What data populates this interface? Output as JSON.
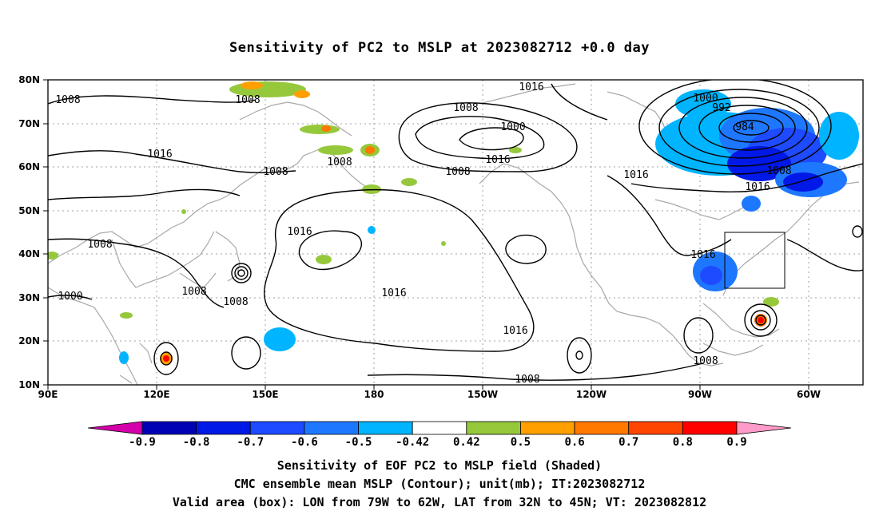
{
  "title": "Sensitivity of PC2 to MSLP at 2023082712 +0.0 day",
  "lat_labels": [
    "80N",
    "70N",
    "60N",
    "50N",
    "40N",
    "30N",
    "20N",
    "10N"
  ],
  "lon_labels": [
    "90E",
    "120E",
    "150E",
    "180",
    "150W",
    "120W",
    "90W",
    "60W"
  ],
  "contour_labels": [
    {
      "text": "1008"
    },
    {
      "text": "1008"
    },
    {
      "text": "1016"
    },
    {
      "text": "1008"
    },
    {
      "text": "1008"
    },
    {
      "text": "1016"
    },
    {
      "text": "1008"
    },
    {
      "text": "1000"
    },
    {
      "text": "1008"
    },
    {
      "text": "1008"
    },
    {
      "text": "1016"
    },
    {
      "text": "1008"
    },
    {
      "text": "1000"
    },
    {
      "text": "1016"
    },
    {
      "text": "1008"
    },
    {
      "text": "1016"
    },
    {
      "text": "1016"
    },
    {
      "text": "1000"
    },
    {
      "text": "992"
    },
    {
      "text": "984"
    },
    {
      "text": "1008"
    },
    {
      "text": "1016"
    },
    {
      "text": "1016"
    },
    {
      "text": "1016"
    },
    {
      "text": "1008"
    },
    {
      "text": "1008"
    }
  ],
  "colorbar": {
    "colors": [
      "#d400aa",
      "#0000b4",
      "#0019e6",
      "#1e4bff",
      "#1e78ff",
      "#00b4ff",
      "#ffffff",
      "#96c83c",
      "#ffa000",
      "#ff7800",
      "#ff4600",
      "#ff0000",
      "#ff9bc8"
    ],
    "labels": [
      "-0.9",
      "-0.8",
      "-0.7",
      "-0.6",
      "-0.5",
      "-0.42",
      "0.42",
      "0.5",
      "0.6",
      "0.7",
      "0.8",
      "0.9"
    ]
  },
  "valid_box": {
    "lon": [
      -79,
      -62
    ],
    "lat": [
      32,
      45
    ]
  },
  "captions": [
    "Sensitivity of EOF PC2 to MSLP field (Shaded)",
    "CMC ensemble mean MSLP (Contour); unit(mb); IT:2023082712",
    "Valid area (box): LON from 79W to 62W, LAT from 32N to 45N; VT: 2023082812"
  ]
}
